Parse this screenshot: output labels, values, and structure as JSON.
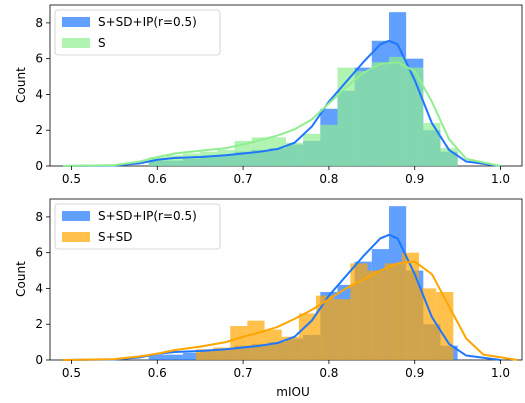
{
  "chart_data": [
    {
      "type": "bar",
      "xlim": [
        0.475,
        1.025
      ],
      "ylim": [
        0,
        9
      ],
      "xticks": [
        "0.5",
        "0.6",
        "0.7",
        "0.8",
        "0.9",
        "1.0"
      ],
      "yticks": [
        "0",
        "2",
        "4",
        "6",
        "8"
      ],
      "xlabel": "",
      "ylabel": "Count",
      "legend_position": "top-left",
      "series": [
        {
          "name": "S+SD+IP(r=0.5)",
          "color": "#1f77ff",
          "bin_starts": [
            0.59,
            0.61,
            0.63,
            0.65,
            0.67,
            0.69,
            0.71,
            0.73,
            0.75,
            0.77,
            0.79,
            0.81,
            0.83,
            0.85,
            0.87,
            0.89,
            0.91,
            0.93
          ],
          "bin_width": 0.02,
          "counts": [
            0.3,
            0.3,
            0.4,
            0.5,
            0.6,
            0.8,
            0.9,
            1.0,
            1.2,
            1.4,
            3.2,
            4.2,
            5.5,
            7.0,
            8.6,
            6.0,
            2.0,
            0.8
          ],
          "kde_x": [
            0.49,
            0.55,
            0.58,
            0.6,
            0.62,
            0.65,
            0.68,
            0.7,
            0.72,
            0.74,
            0.76,
            0.78,
            0.8,
            0.82,
            0.84,
            0.86,
            0.87,
            0.88,
            0.9,
            0.92,
            0.94,
            0.96,
            1.0
          ],
          "kde_y": [
            0.0,
            0.03,
            0.15,
            0.35,
            0.45,
            0.5,
            0.6,
            0.7,
            0.8,
            0.95,
            1.3,
            2.2,
            3.6,
            4.7,
            5.8,
            6.8,
            7.0,
            6.8,
            4.8,
            2.4,
            0.9,
            0.25,
            0.0
          ]
        },
        {
          "name": "S",
          "color": "#90ee90",
          "bin_starts": [
            0.59,
            0.61,
            0.63,
            0.65,
            0.67,
            0.69,
            0.71,
            0.73,
            0.75,
            0.77,
            0.79,
            0.81,
            0.83,
            0.85,
            0.87,
            0.89,
            0.91,
            0.93
          ],
          "bin_width": 0.02,
          "counts": [
            0.5,
            0.6,
            0.7,
            0.8,
            0.9,
            1.4,
            1.6,
            1.6,
            1.3,
            1.8,
            2.3,
            5.5,
            5.3,
            5.8,
            6.1,
            5.5,
            2.4,
            1.0
          ],
          "kde_x": [
            0.49,
            0.55,
            0.58,
            0.6,
            0.62,
            0.65,
            0.68,
            0.7,
            0.72,
            0.74,
            0.76,
            0.78,
            0.8,
            0.82,
            0.84,
            0.86,
            0.88,
            0.9,
            0.92,
            0.94,
            0.96,
            1.0
          ],
          "kde_y": [
            0.0,
            0.05,
            0.25,
            0.5,
            0.7,
            0.85,
            1.0,
            1.2,
            1.45,
            1.7,
            2.05,
            2.6,
            3.5,
            4.4,
            5.2,
            5.7,
            5.8,
            5.3,
            3.6,
            1.5,
            0.4,
            0.0
          ]
        }
      ]
    },
    {
      "type": "bar",
      "xlim": [
        0.475,
        1.025
      ],
      "ylim": [
        0,
        9
      ],
      "xticks": [
        "0.5",
        "0.6",
        "0.7",
        "0.8",
        "0.9",
        "1.0"
      ],
      "yticks": [
        "0",
        "2",
        "4",
        "6",
        "8"
      ],
      "xlabel": "mIOU",
      "ylabel": "Count",
      "legend_position": "top-left",
      "series": [
        {
          "name": "S+SD+IP(r=0.5)",
          "color": "#1f77ff",
          "bin_starts": [
            0.59,
            0.61,
            0.63,
            0.65,
            0.67,
            0.69,
            0.71,
            0.73,
            0.75,
            0.77,
            0.79,
            0.81,
            0.83,
            0.85,
            0.87,
            0.89,
            0.91,
            0.93
          ],
          "bin_width": 0.02,
          "counts": [
            0.3,
            0.3,
            0.4,
            0.5,
            0.6,
            0.8,
            0.9,
            1.0,
            1.2,
            1.4,
            3.8,
            4.2,
            5.5,
            6.2,
            8.6,
            5.0,
            2.0,
            0.8
          ],
          "kde_x": [
            0.49,
            0.55,
            0.58,
            0.6,
            0.62,
            0.65,
            0.68,
            0.7,
            0.72,
            0.74,
            0.76,
            0.78,
            0.8,
            0.82,
            0.84,
            0.86,
            0.87,
            0.88,
            0.9,
            0.92,
            0.94,
            0.96,
            1.0
          ],
          "kde_y": [
            0.0,
            0.03,
            0.15,
            0.35,
            0.45,
            0.5,
            0.6,
            0.7,
            0.8,
            0.95,
            1.3,
            2.2,
            3.6,
            4.7,
            5.8,
            6.8,
            7.0,
            6.8,
            4.8,
            2.4,
            0.9,
            0.25,
            0.0
          ]
        },
        {
          "name": "S+SD",
          "color": "#ffa500",
          "bin_starts": [
            0.645,
            0.665,
            0.685,
            0.705,
            0.725,
            0.745,
            0.765,
            0.785,
            0.805,
            0.825,
            0.845,
            0.865,
            0.885,
            0.905,
            0.925
          ],
          "bin_width": 0.02,
          "counts": [
            0.6,
            0.7,
            1.9,
            2.2,
            1.7,
            1.3,
            2.6,
            3.6,
            3.4,
            5.4,
            5.0,
            5.4,
            6.0,
            4.0,
            3.8
          ],
          "kde_x": [
            0.49,
            0.55,
            0.58,
            0.6,
            0.62,
            0.65,
            0.68,
            0.7,
            0.72,
            0.74,
            0.76,
            0.78,
            0.8,
            0.82,
            0.84,
            0.86,
            0.88,
            0.9,
            0.92,
            0.94,
            0.96,
            0.98,
            1.02
          ],
          "kde_y": [
            0.0,
            0.05,
            0.2,
            0.35,
            0.55,
            0.75,
            1.0,
            1.3,
            1.55,
            1.85,
            2.3,
            2.8,
            3.4,
            4.0,
            4.5,
            5.0,
            5.4,
            5.5,
            4.8,
            3.0,
            1.2,
            0.3,
            0.0
          ]
        }
      ]
    }
  ]
}
